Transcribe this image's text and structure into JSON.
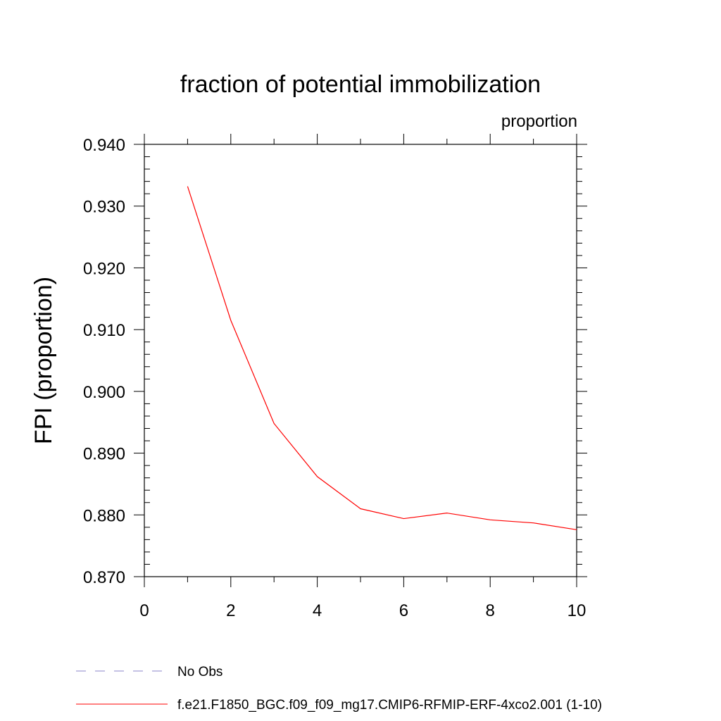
{
  "chart_data": {
    "type": "line",
    "title": "fraction of potential immobilization",
    "units_label": "proportion",
    "xlabel": "",
    "ylabel": "FPI  (proportion)",
    "xlim": [
      0,
      10
    ],
    "ylim": [
      0.87,
      0.94
    ],
    "x_ticks": [
      0,
      2,
      4,
      6,
      8,
      10
    ],
    "x_tick_labels": [
      "0",
      "2",
      "4",
      "6",
      "8",
      "10"
    ],
    "y_ticks": [
      0.87,
      0.88,
      0.89,
      0.9,
      0.91,
      0.92,
      0.93,
      0.94
    ],
    "y_tick_labels": [
      "0.870",
      "0.880",
      "0.890",
      "0.900",
      "0.910",
      "0.920",
      "0.930",
      "0.940"
    ],
    "grid": false,
    "series": [
      {
        "name": "f.e21.F1850_BGC.f09_f09_mg17.CMIP6-RFMIP-ERF-4xco2.001 (1-10)",
        "color": "#ff0000",
        "x": [
          1,
          2,
          3,
          4,
          5,
          6,
          7,
          8,
          9,
          10
        ],
        "values": [
          0.9332,
          0.9115,
          0.8948,
          0.8862,
          0.881,
          0.8794,
          0.8803,
          0.8792,
          0.8787,
          0.8776
        ]
      }
    ],
    "legend": [
      {
        "label": "No Obs",
        "color": "#8a84c8",
        "style": "dashed"
      },
      {
        "label": "f.e21.F1850_BGC.f09_f09_mg17.CMIP6-RFMIP-ERF-4xco2.001 (1-10)",
        "color": "#ff0000",
        "style": "solid"
      }
    ],
    "legend_position": "bottom"
  }
}
